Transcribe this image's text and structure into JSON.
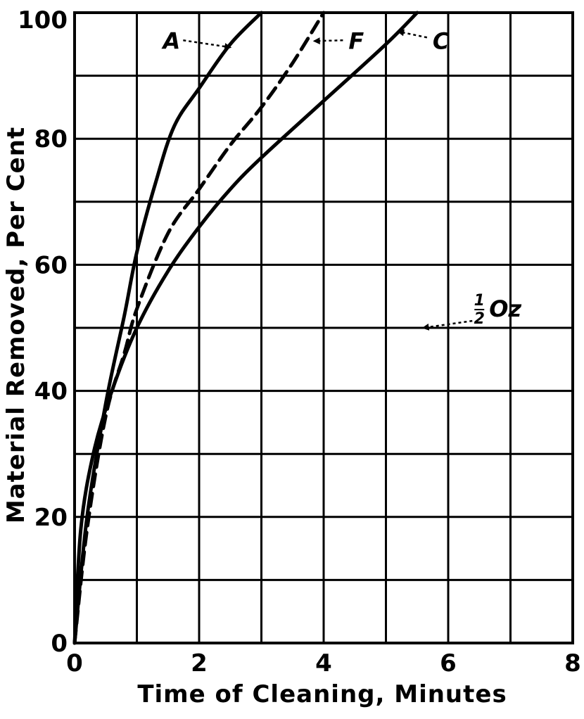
{
  "chart_data": {
    "type": "line",
    "title": "",
    "xlabel": "Time of Cleaning, Minutes",
    "ylabel": "Material Removed, Per Cent",
    "xlim": [
      0,
      8
    ],
    "ylim": [
      0,
      100
    ],
    "xticks": [
      0,
      2,
      4,
      6,
      8
    ],
    "yticks": [
      0,
      20,
      40,
      60,
      80,
      100
    ],
    "x_tick_labels": [
      "0",
      "2",
      "4",
      "6",
      "8"
    ],
    "y_tick_labels": [
      "0",
      "20",
      "40",
      "60",
      "80",
      "100"
    ],
    "grid": true,
    "grid_step": {
      "x": 1,
      "y": 10
    },
    "legend": "none",
    "series": [
      {
        "name": "A",
        "style": "solid",
        "x": [
          0,
          0.2,
          0.5,
          0.8,
          1.0,
          1.3,
          1.6,
          2.0,
          2.5,
          3.0
        ],
        "y": [
          0,
          20,
          38,
          52,
          62,
          73,
          82,
          88,
          95,
          100
        ]
      },
      {
        "name": "F",
        "style": "dashed",
        "x": [
          0,
          0.2,
          0.5,
          0.8,
          1.0,
          1.5,
          2.0,
          2.5,
          3.0,
          3.5,
          4.0
        ],
        "y": [
          0,
          18,
          36,
          46,
          53,
          65,
          72,
          79,
          85,
          92,
          100
        ]
      },
      {
        "name": "C",
        "style": "solid",
        "x": [
          0,
          0.1,
          0.3,
          0.6,
          1.0,
          1.5,
          2.0,
          2.5,
          3.0,
          4.0,
          5.0,
          5.5
        ],
        "y": [
          0,
          18,
          30,
          40,
          50,
          59,
          66,
          72,
          77,
          86,
          95,
          100
        ]
      }
    ],
    "annotations": [
      {
        "text": "A",
        "x": 1.45,
        "y": 94.5,
        "arrow_to": [
          2.5,
          94.5
        ],
        "target": "A"
      },
      {
        "text": "F",
        "x": 4.4,
        "y": 94.5,
        "arrow_to": [
          3.85,
          95.5
        ],
        "target": "F"
      },
      {
        "text": "C",
        "x": 5.75,
        "y": 94.5,
        "arrow_to": [
          5.2,
          97
        ],
        "target": "C"
      },
      {
        "text": "1/2 Oz",
        "x": 6.5,
        "y": 52,
        "arrow_to": [
          5.6,
          50
        ],
        "target": "ref-50"
      }
    ],
    "reference_line_labels": {
      "fraction_num": "1",
      "fraction_den": "2",
      "unit": "Oz"
    }
  }
}
